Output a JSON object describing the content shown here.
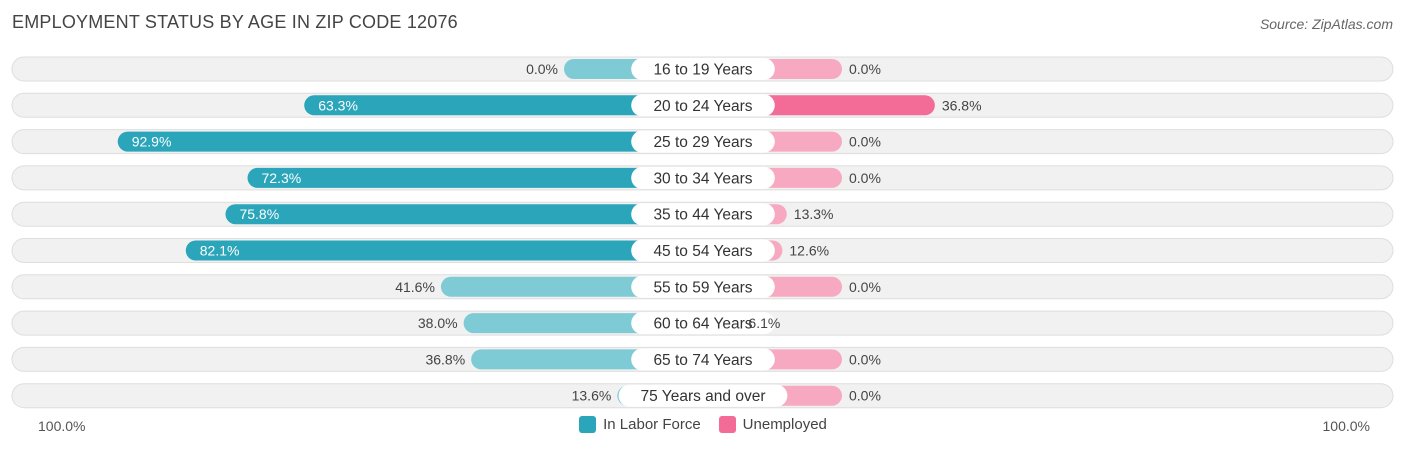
{
  "title": "EMPLOYMENT STATUS BY AGE IN ZIP CODE 12076",
  "source": "Source: ZipAtlas.com",
  "colors": {
    "labor_strong": "#2aa5b9",
    "labor_light": "#7ecbd5",
    "unemp_strong": "#f36b97",
    "unemp_light": "#f7a9c1",
    "row_bg": "#f1f1f1",
    "row_border": "#dedede"
  },
  "legend": {
    "labor": "In Labor Force",
    "unemployed": "Unemployed"
  },
  "axis": {
    "left": "100.0%",
    "right": "100.0%"
  },
  "chart_data": {
    "type": "bar",
    "orientation": "horizontal-diverging",
    "title": "EMPLOYMENT STATUS BY AGE IN ZIP CODE 12076",
    "xlim": [
      -100,
      100
    ],
    "categories": [
      "16 to 19 Years",
      "20 to 24 Years",
      "25 to 29 Years",
      "30 to 34 Years",
      "35 to 44 Years",
      "45 to 54 Years",
      "55 to 59 Years",
      "60 to 64 Years",
      "65 to 74 Years",
      "75 Years and over"
    ],
    "series": [
      {
        "name": "In Labor Force",
        "values": [
          0.0,
          63.3,
          92.9,
          72.3,
          75.8,
          82.1,
          41.6,
          38.0,
          36.8,
          13.6
        ],
        "labels": [
          "0.0%",
          "63.3%",
          "92.9%",
          "72.3%",
          "75.8%",
          "82.1%",
          "41.6%",
          "38.0%",
          "36.8%",
          "13.6%"
        ]
      },
      {
        "name": "Unemployed",
        "values": [
          0.0,
          36.8,
          0.0,
          0.0,
          13.3,
          12.6,
          0.0,
          6.1,
          0.0,
          0.0
        ],
        "labels": [
          "0.0%",
          "36.8%",
          "0.0%",
          "0.0%",
          "13.3%",
          "12.6%",
          "0.0%",
          "6.1%",
          "0.0%",
          "0.0%"
        ]
      }
    ]
  }
}
